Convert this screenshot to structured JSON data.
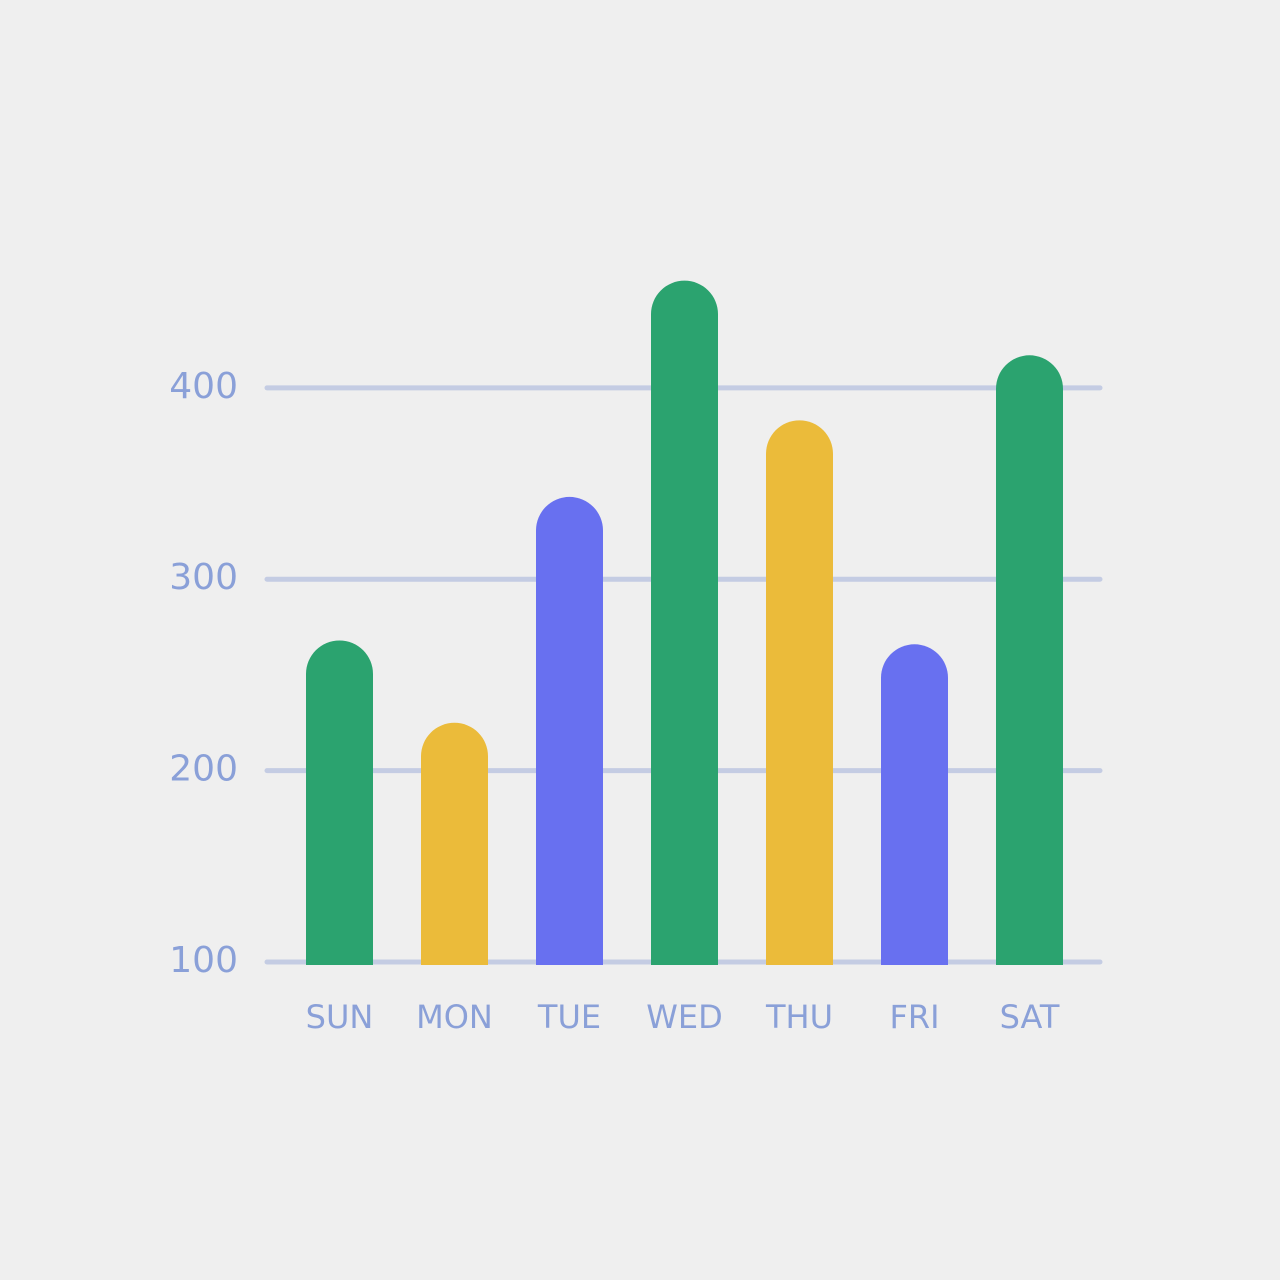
{
  "chart_data": {
    "type": "bar",
    "categories": [
      "SUN",
      "MON",
      "TUE",
      "WED",
      "THU",
      "FRI",
      "SAT"
    ],
    "values": [
      268,
      225,
      343,
      456,
      383,
      266,
      417
    ],
    "colors": [
      "#2ba36f",
      "#ebbb3a",
      "#6870f0",
      "#2ba36f",
      "#ebbb3a",
      "#6870f0",
      "#2ba36f"
    ],
    "ylim": [
      100,
      460
    ],
    "yticks": [
      100,
      200,
      300,
      400
    ],
    "grid": true
  }
}
